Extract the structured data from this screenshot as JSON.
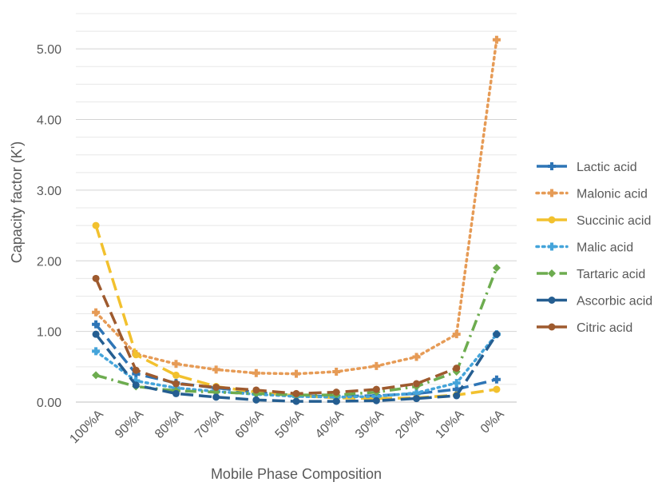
{
  "chart_data": {
    "type": "line",
    "title": "",
    "xlabel": "Mobile Phase Composition",
    "ylabel": "Capacity factor (K')",
    "ylim": [
      0,
      5.5
    ],
    "y_ticks": [
      "0.00",
      "1.00",
      "2.00",
      "3.00",
      "4.00",
      "5.00"
    ],
    "y_tick_values": [
      0,
      1,
      2,
      3,
      4,
      5
    ],
    "grid": "horizontal, every 0.25",
    "legend_position": "right",
    "categories": [
      "100%A",
      "90%A",
      "80%A",
      "70%A",
      "60%A",
      "50%A",
      "40%A",
      "30%A",
      "20%A",
      "10%A",
      "0%A"
    ],
    "series": [
      {
        "name": "Lactic acid",
        "color": "#2E75B6",
        "dash": "long-dash",
        "marker": "plus",
        "values": [
          1.1,
          0.4,
          0.27,
          0.2,
          0.14,
          0.09,
          0.08,
          0.09,
          0.12,
          0.18,
          0.32
        ]
      },
      {
        "name": "Malonic acid",
        "color": "#E69B56",
        "dash": "dot",
        "marker": "plus",
        "values": [
          1.27,
          0.68,
          0.54,
          0.46,
          0.41,
          0.4,
          0.43,
          0.51,
          0.64,
          0.96,
          5.13
        ]
      },
      {
        "name": "Succinic acid",
        "color": "#F2C12E",
        "dash": "long-dash",
        "marker": "circle",
        "values": [
          2.5,
          0.67,
          0.38,
          0.22,
          0.14,
          0.09,
          0.06,
          0.05,
          0.06,
          0.1,
          0.18
        ]
      },
      {
        "name": "Malic acid",
        "color": "#44A4DA",
        "dash": "dot",
        "marker": "plus",
        "values": [
          0.72,
          0.3,
          0.2,
          0.15,
          0.11,
          0.08,
          0.07,
          0.08,
          0.13,
          0.27,
          0.96
        ]
      },
      {
        "name": "Tartaric acid",
        "color": "#6DAC4F",
        "dash": "dash-dot",
        "marker": "diamond",
        "values": [
          0.38,
          0.22,
          0.16,
          0.14,
          0.12,
          0.1,
          0.1,
          0.14,
          0.22,
          0.43,
          1.9
        ]
      },
      {
        "name": "Ascorbic acid",
        "color": "#255E91",
        "dash": "long-dash",
        "marker": "circle",
        "values": [
          0.96,
          0.24,
          0.12,
          0.07,
          0.03,
          0.01,
          0.01,
          0.02,
          0.05,
          0.09,
          0.96
        ]
      },
      {
        "name": "Citric acid",
        "color": "#9E5A2E",
        "dash": "long-dash",
        "marker": "circle",
        "values": [
          1.75,
          0.45,
          0.26,
          0.21,
          0.17,
          0.12,
          0.14,
          0.18,
          0.26,
          0.48,
          null
        ]
      }
    ]
  }
}
